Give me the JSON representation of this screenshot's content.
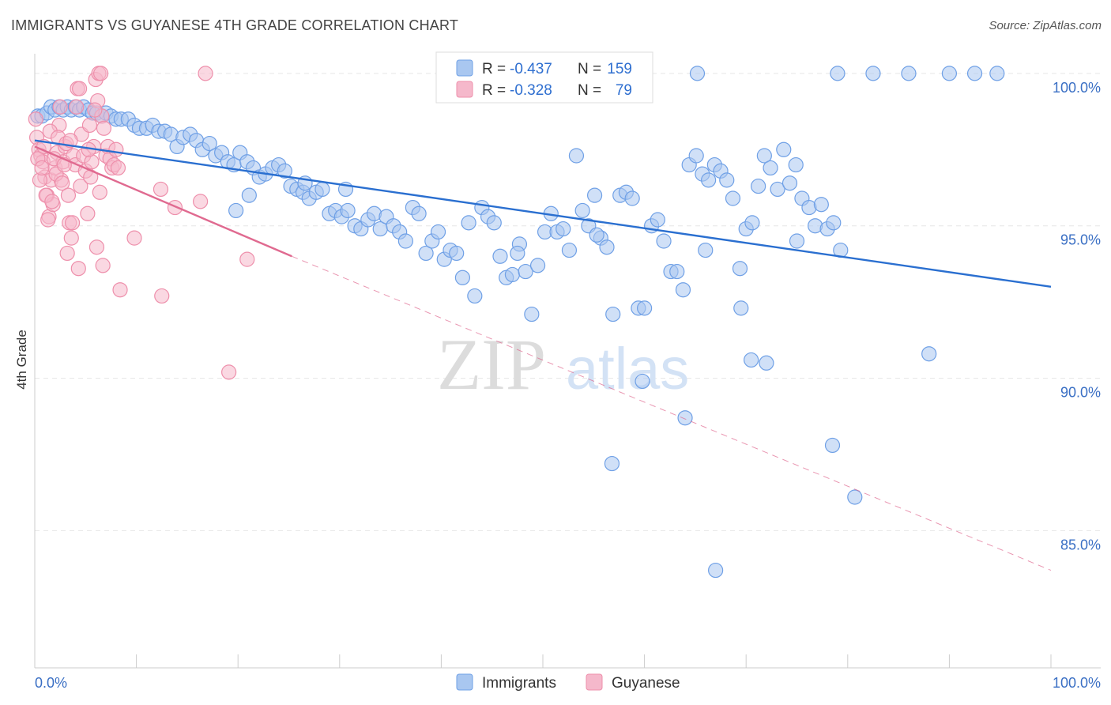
{
  "header": {
    "title": "IMMIGRANTS VS GUYANESE 4TH GRADE CORRELATION CHART",
    "source": "Source: ZipAtlas.com"
  },
  "watermark": {
    "zip": "ZIP",
    "atlas": "atlas"
  },
  "legend_top": {
    "rows": [
      {
        "r_label": "R =",
        "r_value": "-0.437",
        "n_label": "N =",
        "n_value": "159",
        "color": "#a9c7f0"
      },
      {
        "r_label": "R =",
        "r_value": "-0.328",
        "n_label": "N =",
        "n_value": "79",
        "color": "#f5b8cb"
      }
    ]
  },
  "legend_bottom": {
    "items": [
      {
        "label": "Immigrants",
        "color": "#a9c7f0"
      },
      {
        "label": "Guyanese",
        "color": "#f5b8cb"
      }
    ]
  },
  "chart_data": {
    "type": "scatter",
    "title": "IMMIGRANTS VS GUYANESE 4TH GRADE CORRELATION CHART",
    "ylabel": "4th Grade",
    "xlim": [
      0,
      100
    ],
    "ylim": [
      80.5,
      100.8
    ],
    "x_tick_labels": [
      "0.0%",
      "100.0%"
    ],
    "y_ticks": [
      {
        "value": 100,
        "label": "100.0%"
      },
      {
        "value": 95,
        "label": "95.0%"
      },
      {
        "value": 90,
        "label": "90.0%"
      },
      {
        "value": 85,
        "label": "85.0%"
      }
    ],
    "grid": true,
    "series": [
      {
        "name": "Immigrants",
        "color": "#6fa0e6",
        "fill": "#a9c7f0",
        "trend": {
          "x1": 0,
          "y1": 97.8,
          "x2": 100,
          "y2": 93.0,
          "color": "#2a6fd0"
        },
        "points": [
          [
            0.3,
            98.6
          ],
          [
            0.7,
            98.6
          ],
          [
            1.2,
            98.7
          ],
          [
            1.6,
            98.9
          ],
          [
            2.0,
            98.8
          ],
          [
            2.4,
            98.9
          ],
          [
            2.8,
            98.8
          ],
          [
            3.2,
            98.9
          ],
          [
            3.6,
            98.8
          ],
          [
            4.0,
            98.9
          ],
          [
            4.4,
            98.8
          ],
          [
            4.8,
            98.9
          ],
          [
            5.3,
            98.8
          ],
          [
            5.7,
            98.7
          ],
          [
            6.1,
            98.7
          ],
          [
            6.6,
            98.6
          ],
          [
            7.0,
            98.7
          ],
          [
            7.5,
            98.6
          ],
          [
            8.0,
            98.5
          ],
          [
            8.5,
            98.5
          ],
          [
            9.2,
            98.5
          ],
          [
            9.8,
            98.3
          ],
          [
            10.3,
            98.2
          ],
          [
            11.0,
            98.2
          ],
          [
            11.6,
            98.3
          ],
          [
            12.2,
            98.1
          ],
          [
            12.8,
            98.1
          ],
          [
            13.4,
            98.0
          ],
          [
            14.0,
            97.6
          ],
          [
            14.6,
            97.9
          ],
          [
            15.3,
            98.0
          ],
          [
            15.9,
            97.8
          ],
          [
            16.5,
            97.5
          ],
          [
            17.2,
            97.7
          ],
          [
            17.8,
            97.3
          ],
          [
            18.4,
            97.4
          ],
          [
            19.0,
            97.1
          ],
          [
            19.6,
            97.0
          ],
          [
            20.2,
            97.4
          ],
          [
            20.9,
            97.1
          ],
          [
            21.5,
            96.9
          ],
          [
            22.1,
            96.6
          ],
          [
            22.7,
            96.7
          ],
          [
            23.4,
            96.9
          ],
          [
            24.0,
            97.0
          ],
          [
            24.6,
            96.8
          ],
          [
            25.2,
            96.3
          ],
          [
            25.8,
            96.2
          ],
          [
            26.4,
            96.1
          ],
          [
            27.0,
            95.9
          ],
          [
            27.7,
            96.1
          ],
          [
            28.3,
            96.2
          ],
          [
            29.0,
            95.4
          ],
          [
            29.6,
            95.5
          ],
          [
            30.2,
            95.3
          ],
          [
            30.8,
            95.5
          ],
          [
            31.5,
            95.0
          ],
          [
            32.1,
            94.9
          ],
          [
            32.8,
            95.2
          ],
          [
            33.4,
            95.4
          ],
          [
            34.0,
            94.9
          ],
          [
            34.6,
            95.3
          ],
          [
            35.3,
            95.0
          ],
          [
            35.9,
            94.8
          ],
          [
            36.5,
            94.5
          ],
          [
            37.2,
            95.6
          ],
          [
            37.8,
            95.4
          ],
          [
            38.5,
            94.1
          ],
          [
            39.1,
            94.5
          ],
          [
            39.7,
            94.8
          ],
          [
            40.3,
            93.9
          ],
          [
            40.9,
            94.2
          ],
          [
            41.5,
            94.1
          ],
          [
            42.1,
            93.3
          ],
          [
            42.7,
            95.1
          ],
          [
            43.3,
            92.7
          ],
          [
            44.0,
            95.6
          ],
          [
            44.6,
            95.3
          ],
          [
            45.2,
            95.1
          ],
          [
            45.8,
            94.0
          ],
          [
            46.4,
            93.3
          ],
          [
            47.0,
            93.4
          ],
          [
            47.7,
            94.4
          ],
          [
            48.3,
            93.5
          ],
          [
            48.9,
            92.1
          ],
          [
            49.5,
            93.7
          ],
          [
            50.2,
            94.8
          ],
          [
            50.8,
            95.4
          ],
          [
            51.4,
            94.8
          ],
          [
            52.0,
            94.9
          ],
          [
            52.6,
            94.2
          ],
          [
            53.3,
            97.3
          ],
          [
            53.9,
            95.5
          ],
          [
            54.5,
            95.0
          ],
          [
            55.1,
            96.0
          ],
          [
            55.7,
            94.6
          ],
          [
            56.3,
            94.3
          ],
          [
            56.9,
            92.1
          ],
          [
            57.6,
            96.0
          ],
          [
            58.2,
            96.1
          ],
          [
            58.8,
            95.9
          ],
          [
            59.4,
            92.3
          ],
          [
            60.0,
            92.3
          ],
          [
            60.7,
            95.0
          ],
          [
            61.3,
            95.2
          ],
          [
            61.9,
            94.5
          ],
          [
            62.6,
            93.5
          ],
          [
            63.2,
            93.5
          ],
          [
            63.8,
            92.9
          ],
          [
            64.4,
            97.0
          ],
          [
            65.1,
            97.3
          ],
          [
            65.7,
            96.7
          ],
          [
            66.3,
            96.5
          ],
          [
            66.9,
            97.0
          ],
          [
            67.5,
            96.8
          ],
          [
            68.1,
            96.5
          ],
          [
            68.7,
            95.9
          ],
          [
            69.4,
            93.6
          ],
          [
            70.0,
            94.9
          ],
          [
            70.6,
            95.1
          ],
          [
            71.2,
            96.3
          ],
          [
            71.8,
            97.3
          ],
          [
            72.4,
            96.9
          ],
          [
            73.1,
            96.2
          ],
          [
            73.7,
            97.5
          ],
          [
            74.3,
            96.4
          ],
          [
            74.9,
            97.0
          ],
          [
            75.5,
            95.9
          ],
          [
            76.2,
            95.6
          ],
          [
            76.8,
            95.0
          ],
          [
            77.4,
            95.7
          ],
          [
            78.0,
            94.9
          ],
          [
            78.6,
            95.1
          ],
          [
            79.3,
            94.2
          ],
          [
            75.0,
            94.5
          ],
          [
            70.5,
            90.6
          ],
          [
            69.5,
            92.3
          ],
          [
            59.8,
            89.9
          ],
          [
            56.8,
            87.2
          ],
          [
            64.0,
            88.7
          ],
          [
            67.0,
            83.7
          ],
          [
            78.5,
            87.8
          ],
          [
            80.7,
            86.1
          ],
          [
            88.0,
            90.8
          ],
          [
            72.0,
            90.5
          ],
          [
            79.0,
            100.0
          ],
          [
            82.5,
            100.0
          ],
          [
            86.0,
            100.0
          ],
          [
            90.0,
            100.0
          ],
          [
            92.5,
            100.0
          ],
          [
            94.7,
            100.0
          ],
          [
            65.2,
            100.0
          ],
          [
            47.5,
            94.1
          ],
          [
            55.3,
            94.7
          ],
          [
            66.0,
            94.2
          ],
          [
            30.6,
            96.2
          ],
          [
            26.6,
            96.4
          ],
          [
            21.1,
            96.0
          ],
          [
            19.8,
            95.5
          ]
        ]
      },
      {
        "name": "Guyanese",
        "color": "#ee8fab",
        "fill": "#f5b8cb",
        "trend": {
          "x1": 0,
          "y1": 97.6,
          "x2": 25.3,
          "y2": 94.0,
          "dash_x2": 100,
          "dash_y2": 83.7,
          "color": "#e06a90"
        },
        "points": [
          [
            0.2,
            97.9
          ],
          [
            0.4,
            97.5
          ],
          [
            0.6,
            97.3
          ],
          [
            0.8,
            97.1
          ],
          [
            1.0,
            96.6
          ],
          [
            1.2,
            96.0
          ],
          [
            1.4,
            95.3
          ],
          [
            1.6,
            96.5
          ],
          [
            1.8,
            95.7
          ],
          [
            2.0,
            96.9
          ],
          [
            2.2,
            97.4
          ],
          [
            2.4,
            98.3
          ],
          [
            2.6,
            96.5
          ],
          [
            2.8,
            97.1
          ],
          [
            3.0,
            97.6
          ],
          [
            3.2,
            94.1
          ],
          [
            3.4,
            95.1
          ],
          [
            3.6,
            94.6
          ],
          [
            3.8,
            97.3
          ],
          [
            4.0,
            97.0
          ],
          [
            4.2,
            99.5
          ],
          [
            4.4,
            99.5
          ],
          [
            4.6,
            98.0
          ],
          [
            4.8,
            97.3
          ],
          [
            5.0,
            96.8
          ],
          [
            5.2,
            95.4
          ],
          [
            5.4,
            98.3
          ],
          [
            5.6,
            97.1
          ],
          [
            5.8,
            97.6
          ],
          [
            6.0,
            99.8
          ],
          [
            6.2,
            99.1
          ],
          [
            6.4,
            96.1
          ],
          [
            6.6,
            98.6
          ],
          [
            6.8,
            98.2
          ],
          [
            7.0,
            97.3
          ],
          [
            7.2,
            97.6
          ],
          [
            7.4,
            97.2
          ],
          [
            7.6,
            96.9
          ],
          [
            7.8,
            97.0
          ],
          [
            8.0,
            97.5
          ],
          [
            0.3,
            97.2
          ],
          [
            0.5,
            96.5
          ],
          [
            0.7,
            96.9
          ],
          [
            0.9,
            97.6
          ],
          [
            1.1,
            96.0
          ],
          [
            1.5,
            98.1
          ],
          [
            1.7,
            95.8
          ],
          [
            1.9,
            97.2
          ],
          [
            2.1,
            96.7
          ],
          [
            2.3,
            97.9
          ],
          [
            2.7,
            96.4
          ],
          [
            2.9,
            97.0
          ],
          [
            3.1,
            97.7
          ],
          [
            3.3,
            96.0
          ],
          [
            3.5,
            97.8
          ],
          [
            4.1,
            98.9
          ],
          [
            4.3,
            93.6
          ],
          [
            4.5,
            96.3
          ],
          [
            5.3,
            97.5
          ],
          [
            5.5,
            96.6
          ],
          [
            6.1,
            94.3
          ],
          [
            6.3,
            100.0
          ],
          [
            6.7,
            93.7
          ],
          [
            8.2,
            96.9
          ],
          [
            8.4,
            92.9
          ],
          [
            9.8,
            94.6
          ],
          [
            12.4,
            96.2
          ],
          [
            12.5,
            92.7
          ],
          [
            13.8,
            95.6
          ],
          [
            16.3,
            95.8
          ],
          [
            16.8,
            100.0
          ],
          [
            19.1,
            90.2
          ],
          [
            20.9,
            93.9
          ],
          [
            6.5,
            100.0
          ],
          [
            2.5,
            98.9
          ],
          [
            3.7,
            95.1
          ],
          [
            5.9,
            98.8
          ],
          [
            1.3,
            95.2
          ],
          [
            0.1,
            98.5
          ]
        ]
      }
    ]
  }
}
